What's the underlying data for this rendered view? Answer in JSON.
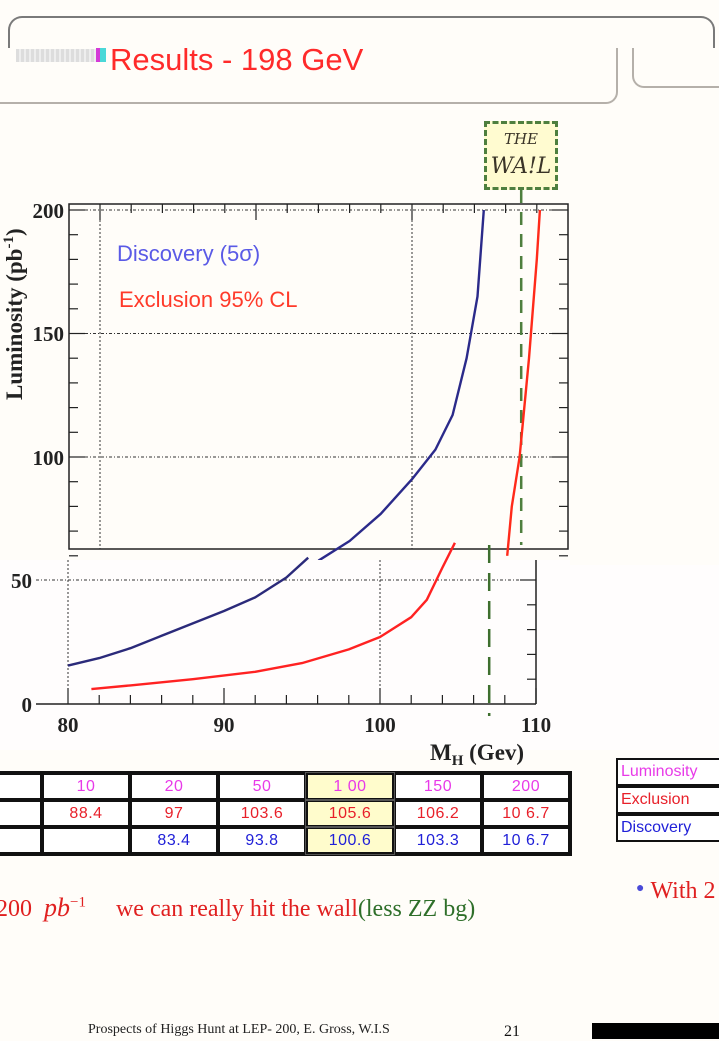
{
  "slide": {
    "title": "Results -  198 GeV",
    "wall_label_line1": "THE",
    "wall_label_line2": "WA!L",
    "conclusion": {
      "prefix": "200",
      "unit": "pb",
      "unit_exp": "−1",
      "text": "we can really hit the wall",
      "note": "(less ZZ bg)"
    },
    "right_bullet": "With 2",
    "footer": "Prospects of Higgs Hunt at LEP-   200, E. Gross, W.I.S",
    "page_number": "21"
  },
  "colors": {
    "title": "#ff2a2a",
    "discovery": "#2b2a8a",
    "exclusion": "#ff2a1a",
    "wall": "#4e7f3e",
    "luminosity_text": "#e83ae8",
    "exclusion_text": "#e8202a",
    "discovery_text": "#2020d8"
  },
  "results_table": {
    "row_labels": [
      "Luminosity",
      "Exclusion",
      "Discovery"
    ],
    "luminosity": [
      "10",
      "20",
      "50",
      "1 00",
      "150",
      "200"
    ],
    "exclusion": [
      "88.4",
      "97",
      "103.6",
      "105.6",
      "106.2",
      "10 6.7"
    ],
    "discovery": [
      "",
      "83.4",
      "93.8",
      "100.6",
      "103.3",
      "10 6.7"
    ],
    "highlighted_column": 3
  },
  "chart_data": [
    {
      "type": "line",
      "panel": "upper",
      "title": "",
      "xlabel": "",
      "ylabel": "Luminosity (pb-1)",
      "xlim": [
        78,
        110
      ],
      "ylim": [
        55,
        200
      ],
      "yticks": [
        100,
        150,
        200
      ],
      "grid": true,
      "legend": [
        "Discovery (5σ)",
        "Exclusion 95% CL"
      ],
      "legend_position": "top-left",
      "wall_mass": 107,
      "series": [
        {
          "name": "Discovery (5σ)",
          "x": [
            94,
            96,
            98,
            100,
            101.5,
            102.6,
            103.5,
            104.2,
            104.6
          ],
          "y": [
            58,
            66,
            77,
            91,
            103,
            117,
            140,
            165,
            200
          ]
        },
        {
          "name": "Exclusion 95% CL",
          "x": [
            106.1,
            106.4,
            106.9,
            107.5,
            108.0,
            108.2
          ],
          "y": [
            60,
            80,
            100,
            140,
            180,
            200
          ]
        }
      ]
    },
    {
      "type": "line",
      "panel": "lower",
      "title": "",
      "xlabel": "M_H (Gev)",
      "ylabel": "",
      "xlim": [
        80,
        110
      ],
      "ylim": [
        0,
        60
      ],
      "xticks": [
        80,
        90,
        100,
        110
      ],
      "yticks": [
        0,
        50
      ],
      "grid": true,
      "wall_mass": 107,
      "series": [
        {
          "name": "Discovery (5σ)",
          "x": [
            80,
            82,
            84,
            86,
            88,
            90,
            92,
            94,
            95.4
          ],
          "y": [
            15.5,
            18.5,
            22.5,
            27.5,
            32.5,
            37.5,
            43,
            51,
            59
          ]
        },
        {
          "name": "Exclusion 95% CL",
          "x": [
            81.5,
            84,
            88,
            92,
            95,
            98,
            100,
            102,
            103,
            104,
            104.8
          ],
          "y": [
            6,
            7.5,
            10,
            13,
            16.5,
            22,
            27,
            35,
            42,
            55,
            65
          ]
        }
      ]
    }
  ],
  "axis_labels": {
    "y": "Luminosity (pb",
    "y_exp": "-1",
    "y_close": ")",
    "x_main": "M",
    "x_sub": "H",
    "x_unit": " (Gev)",
    "upper_y_ticks": [
      "200",
      "150",
      "100"
    ],
    "lower_y_ticks": [
      "50",
      "0"
    ],
    "lower_x_ticks": [
      "80",
      "90",
      "100",
      "110"
    ]
  }
}
